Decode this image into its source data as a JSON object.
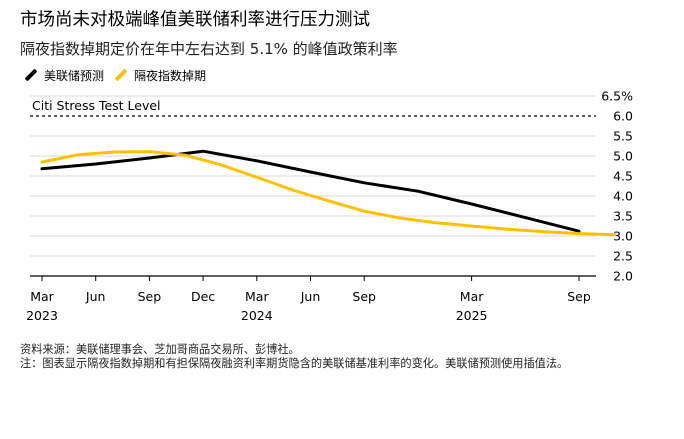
{
  "header": {
    "title": "市场尚未对极端峰值美联储利率进行压力测试",
    "subtitle": "隔夜指数掉期定价在年中左右达到 5.1% 的峰值政策利率"
  },
  "colors": {
    "fed": "#000000",
    "ois": "#FFC000",
    "grid": "#d9d9d9",
    "axis": "#000000"
  },
  "footer": {
    "source": "资料来源：美联储理事会、芝加哥商品交易所、彭博社。",
    "note": "注：图表显示隔夜指数掉期和有担保隔夜融资利率期货隐含的美联储基准利率的变化。美联储预测使用插值法。"
  },
  "chart_data": {
    "type": "line",
    "legend_position": "top-left",
    "grid": true,
    "x_start": "2023-03",
    "x_end": "2025-12",
    "ylim": [
      2.0,
      6.5
    ],
    "y_ticks": [
      "2.0",
      "2.5",
      "3.0",
      "3.5",
      "4.0",
      "4.5",
      "5.0",
      "5.5",
      "6.0",
      "6.5%"
    ],
    "x_ticks": [
      {
        "date": "2023-03",
        "label": "Mar",
        "year": "2023"
      },
      {
        "date": "2023-06",
        "label": "Jun",
        "year": ""
      },
      {
        "date": "2023-09",
        "label": "Sep",
        "year": ""
      },
      {
        "date": "2023-12",
        "label": "Dec",
        "year": ""
      },
      {
        "date": "2024-03",
        "label": "Mar",
        "year": "2024"
      },
      {
        "date": "2024-06",
        "label": "Jun",
        "year": ""
      },
      {
        "date": "2024-09",
        "label": "Sep",
        "year": ""
      },
      {
        "date": "2025-03",
        "label": "Mar",
        "year": "2025"
      },
      {
        "date": "2025-09",
        "label": "Sep",
        "year": ""
      }
    ],
    "reference_line": {
      "label": "Citi Stress Test Level",
      "value": 6.0
    },
    "series": [
      {
        "name": "美联储预测",
        "color": "#000000",
        "points": [
          {
            "x": "2023-03",
            "y": 4.68
          },
          {
            "x": "2023-06",
            "y": 4.8
          },
          {
            "x": "2023-09",
            "y": 4.95
          },
          {
            "x": "2023-12",
            "y": 5.12
          },
          {
            "x": "2024-03",
            "y": 4.88
          },
          {
            "x": "2024-06",
            "y": 4.6
          },
          {
            "x": "2024-09",
            "y": 4.33
          },
          {
            "x": "2024-12",
            "y": 4.12
          },
          {
            "x": "2025-03",
            "y": 3.8
          },
          {
            "x": "2025-06",
            "y": 3.46
          },
          {
            "x": "2025-09",
            "y": 3.12
          }
        ]
      },
      {
        "name": "隔夜指数掉期",
        "color": "#FFC000",
        "points": [
          {
            "x": "2023-03",
            "y": 4.85
          },
          {
            "x": "2023-05",
            "y": 5.03
          },
          {
            "x": "2023-07",
            "y": 5.1
          },
          {
            "x": "2023-09",
            "y": 5.11
          },
          {
            "x": "2023-11",
            "y": 5.02
          },
          {
            "x": "2024-01",
            "y": 4.78
          },
          {
            "x": "2024-03",
            "y": 4.47
          },
          {
            "x": "2024-05",
            "y": 4.15
          },
          {
            "x": "2024-07",
            "y": 3.88
          },
          {
            "x": "2024-09",
            "y": 3.62
          },
          {
            "x": "2024-11",
            "y": 3.45
          },
          {
            "x": "2025-01",
            "y": 3.33
          },
          {
            "x": "2025-03",
            "y": 3.25
          },
          {
            "x": "2025-05",
            "y": 3.17
          },
          {
            "x": "2025-07",
            "y": 3.11
          },
          {
            "x": "2025-09",
            "y": 3.06
          },
          {
            "x": "2025-11",
            "y": 3.03
          }
        ]
      }
    ]
  }
}
